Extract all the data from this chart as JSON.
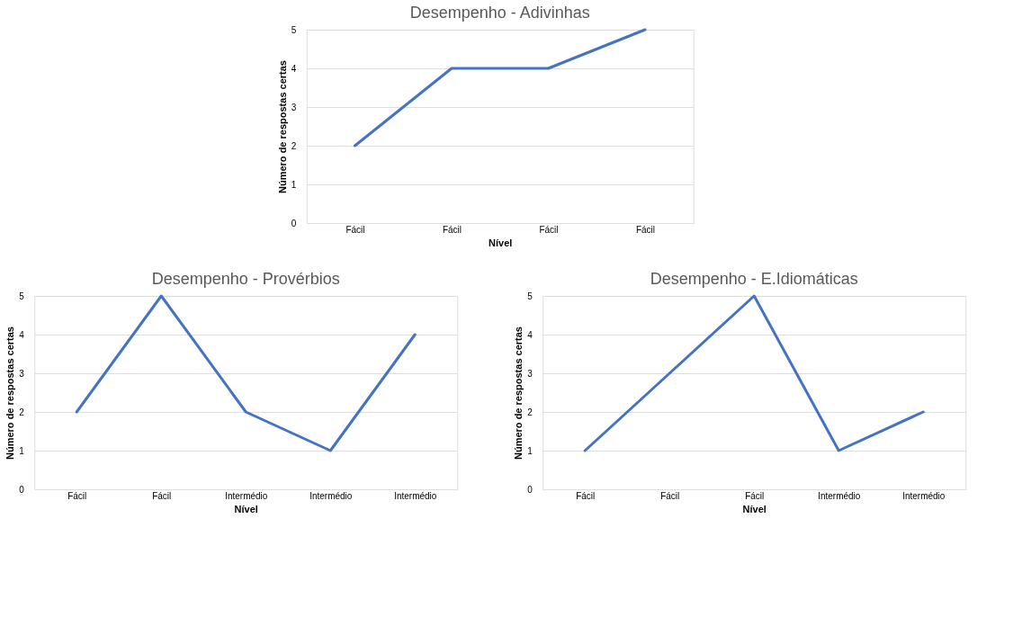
{
  "chart_data": [
    {
      "type": "line",
      "title": "Desempenho - Adivinhas",
      "xlabel": "Nível",
      "ylabel": "Número de respostas certas",
      "categories": [
        "Fácil",
        "Fácil",
        "Fácil",
        "Fácil"
      ],
      "series": [
        {
          "color": "#4472c4",
          "values": [
            2,
            4,
            4,
            5
          ]
        }
      ],
      "ylim": [
        0,
        5
      ],
      "yticks": [
        0,
        1,
        2,
        3,
        4,
        5
      ],
      "grid": "y"
    },
    {
      "type": "line",
      "title": "Desempenho - Provérbios",
      "xlabel": "Nível",
      "ylabel": "Número de respostas certas",
      "categories": [
        "Fácil",
        "Fácil",
        "Intermédio",
        "Intermédio",
        "Intermédio"
      ],
      "series": [
        {
          "color": "#4472c4",
          "values": [
            2,
            5,
            2,
            1,
            4
          ]
        }
      ],
      "ylim": [
        0,
        5
      ],
      "yticks": [
        0,
        1,
        2,
        3,
        4,
        5
      ],
      "grid": "y"
    },
    {
      "type": "line",
      "title": "Desempenho - E.Idiomáticas",
      "xlabel": "Nível",
      "ylabel": "Número de respostas certas",
      "categories": [
        "Fácil",
        "Fácil",
        "Fácil",
        "Intermédio",
        "Intermédio"
      ],
      "series": [
        {
          "color": "#4472c4",
          "values": [
            1,
            3,
            5,
            1,
            2
          ]
        }
      ],
      "ylim": [
        0,
        5
      ],
      "yticks": [
        0,
        1,
        2,
        3,
        4,
        5
      ],
      "grid": "y"
    }
  ]
}
